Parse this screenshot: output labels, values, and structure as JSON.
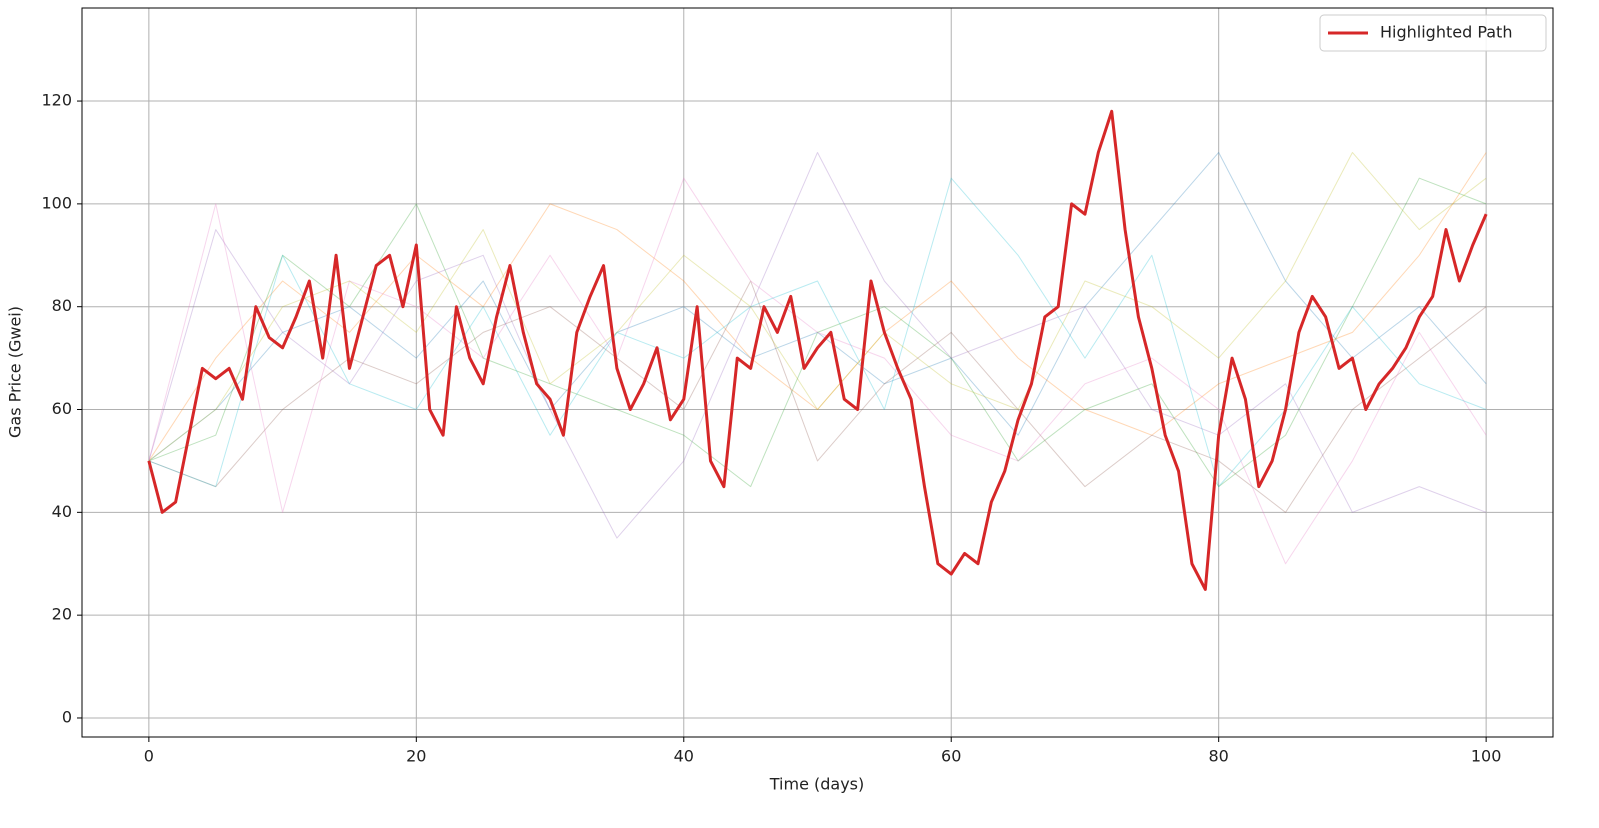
{
  "chart_data": {
    "type": "line",
    "xlabel": "Time (days)",
    "ylabel": "Gas Price (Gwei)",
    "x": [
      0,
      1,
      2,
      3,
      4,
      5,
      6,
      7,
      8,
      9,
      10,
      11,
      12,
      13,
      14,
      15,
      16,
      17,
      18,
      19,
      20,
      21,
      22,
      23,
      24,
      25,
      26,
      27,
      28,
      29,
      30,
      31,
      32,
      33,
      34,
      35,
      36,
      37,
      38,
      39,
      40,
      41,
      42,
      43,
      44,
      45,
      46,
      47,
      48,
      49,
      50,
      51,
      52,
      53,
      54,
      55,
      56,
      57,
      58,
      59,
      60,
      61,
      62,
      63,
      64,
      65,
      66,
      67,
      68,
      69,
      70,
      71,
      72,
      73,
      74,
      75,
      76,
      77,
      78,
      79,
      80,
      81,
      82,
      83,
      84,
      85,
      86,
      87,
      88,
      89,
      90,
      91,
      92,
      93,
      94,
      95,
      96,
      97,
      98,
      99,
      100
    ],
    "series": [
      {
        "color": "#1f77b4",
        "opacity": 0.3,
        "line_width": 1,
        "x": [
          0,
          5,
          10,
          15,
          20,
          25,
          30,
          35,
          40,
          45,
          50,
          55,
          60,
          65,
          70,
          75,
          80,
          85,
          90,
          95,
          100
        ],
        "values": [
          50,
          60,
          75,
          80,
          70,
          85,
          60,
          75,
          80,
          70,
          75,
          65,
          70,
          55,
          80,
          95,
          110,
          85,
          70,
          80,
          65
        ]
      },
      {
        "color": "#ff7f0e",
        "opacity": 0.3,
        "line_width": 1,
        "x": [
          0,
          5,
          10,
          15,
          20,
          25,
          30,
          35,
          40,
          45,
          50,
          55,
          60,
          65,
          70,
          75,
          80,
          85,
          90,
          95,
          100
        ],
        "values": [
          50,
          70,
          85,
          75,
          90,
          80,
          100,
          95,
          85,
          70,
          60,
          75,
          85,
          70,
          60,
          55,
          65,
          70,
          75,
          90,
          110
        ]
      },
      {
        "color": "#2ca02c",
        "opacity": 0.3,
        "line_width": 1,
        "x": [
          0,
          5,
          10,
          15,
          20,
          25,
          30,
          35,
          40,
          45,
          50,
          55,
          60,
          65,
          70,
          75,
          80,
          85,
          90,
          95,
          100
        ],
        "values": [
          50,
          55,
          90,
          80,
          100,
          70,
          65,
          60,
          55,
          45,
          75,
          80,
          70,
          50,
          60,
          65,
          45,
          55,
          80,
          105,
          100
        ]
      },
      {
        "color": "#9467bd",
        "opacity": 0.3,
        "line_width": 1,
        "x": [
          0,
          5,
          10,
          15,
          20,
          25,
          30,
          35,
          40,
          45,
          50,
          55,
          60,
          65,
          70,
          75,
          80,
          85,
          90,
          95,
          100
        ],
        "values": [
          50,
          95,
          75,
          65,
          85,
          90,
          60,
          35,
          50,
          80,
          110,
          85,
          70,
          75,
          80,
          60,
          55,
          65,
          40,
          45,
          40
        ]
      },
      {
        "color": "#8c564b",
        "opacity": 0.3,
        "line_width": 1,
        "x": [
          0,
          5,
          10,
          15,
          20,
          25,
          30,
          35,
          40,
          45,
          50,
          55,
          60,
          65,
          70,
          75,
          80,
          85,
          90,
          95,
          100
        ],
        "values": [
          50,
          45,
          60,
          70,
          65,
          75,
          80,
          70,
          60,
          85,
          50,
          65,
          75,
          60,
          45,
          55,
          50,
          40,
          60,
          70,
          80
        ]
      },
      {
        "color": "#e377c2",
        "opacity": 0.3,
        "line_width": 1,
        "x": [
          0,
          5,
          10,
          15,
          20,
          25,
          30,
          35,
          40,
          45,
          50,
          55,
          60,
          65,
          70,
          75,
          80,
          85,
          90,
          95,
          100
        ],
        "values": [
          50,
          100,
          40,
          85,
          80,
          70,
          90,
          70,
          105,
          85,
          75,
          70,
          55,
          50,
          65,
          70,
          60,
          30,
          50,
          75,
          55
        ]
      },
      {
        "color": "#17becf",
        "opacity": 0.3,
        "line_width": 1,
        "x": [
          0,
          5,
          10,
          15,
          20,
          25,
          30,
          35,
          40,
          45,
          50,
          55,
          60,
          65,
          70,
          75,
          80,
          85,
          90,
          95,
          100
        ],
        "values": [
          50,
          45,
          90,
          65,
          60,
          80,
          55,
          75,
          70,
          80,
          85,
          60,
          105,
          90,
          70,
          90,
          45,
          60,
          80,
          65,
          60
        ]
      },
      {
        "color": "#bcbd22",
        "opacity": 0.3,
        "line_width": 1,
        "x": [
          0,
          5,
          10,
          15,
          20,
          25,
          30,
          35,
          40,
          45,
          50,
          55,
          60,
          65,
          70,
          75,
          80,
          85,
          90,
          95,
          100
        ],
        "values": [
          50,
          60,
          80,
          85,
          75,
          95,
          65,
          75,
          90,
          80,
          60,
          75,
          65,
          60,
          85,
          80,
          70,
          85,
          110,
          95,
          105
        ]
      },
      {
        "name": "Highlighted Path",
        "color": "#d62728",
        "opacity": 1,
        "line_width": 3,
        "values": [
          50,
          40,
          42,
          55,
          68,
          66,
          68,
          62,
          80,
          74,
          72,
          78,
          85,
          70,
          90,
          68,
          78,
          88,
          90,
          80,
          92,
          60,
          55,
          80,
          70,
          65,
          78,
          88,
          75,
          65,
          62,
          55,
          75,
          82,
          88,
          68,
          60,
          65,
          72,
          58,
          62,
          80,
          50,
          45,
          70,
          68,
          80,
          75,
          82,
          68,
          72,
          75,
          62,
          60,
          85,
          75,
          68,
          62,
          45,
          30,
          28,
          32,
          30,
          42,
          48,
          58,
          65,
          78,
          80,
          100,
          98,
          110,
          118,
          95,
          78,
          68,
          55,
          48,
          30,
          25,
          55,
          70,
          62,
          45,
          50,
          60,
          75,
          82,
          78,
          68,
          70,
          60,
          65,
          68,
          72,
          78,
          82,
          95,
          85,
          92,
          98
        ]
      }
    ],
    "xlim": [
      -5,
      105
    ],
    "ylim": [
      -3.7,
      138.1
    ],
    "xticks": [
      0,
      20,
      40,
      60,
      80,
      100
    ],
    "yticks": [
      0,
      20,
      40,
      60,
      80,
      100,
      120
    ],
    "grid": true,
    "legend": "upper right"
  }
}
